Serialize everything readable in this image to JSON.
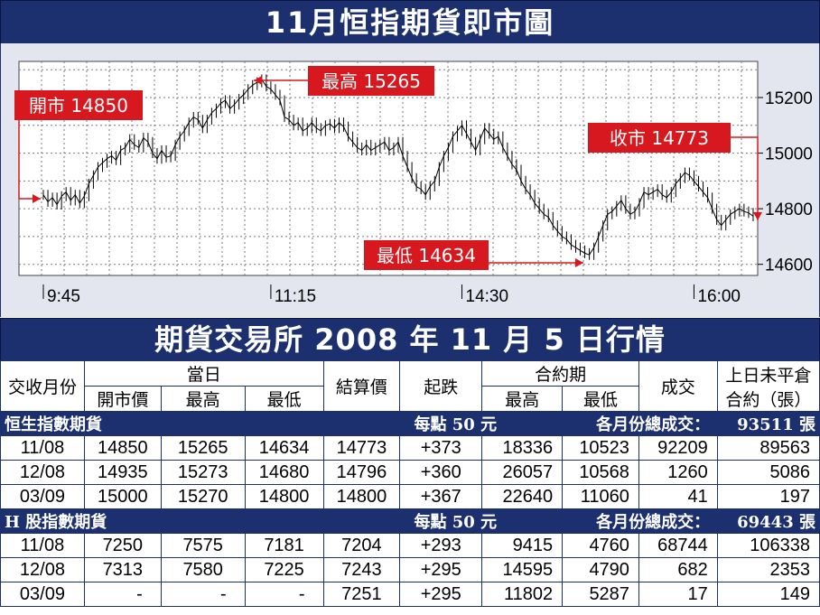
{
  "title": "11月恒指期貨即市圖",
  "chart_data": {
    "type": "candlestick-line",
    "ylim": [
      14560,
      15330
    ],
    "yticks": [
      "15200",
      "15000",
      "14800",
      "14600"
    ],
    "ytick_values": [
      15200,
      15000,
      14800,
      14600
    ],
    "xticks": [
      "9:45",
      "11:15",
      "14:30",
      "16:00"
    ],
    "xtick_positions": [
      0,
      50,
      92,
      143
    ],
    "n_points": 158,
    "points": [
      14850,
      14825,
      14840,
      14815,
      14845,
      14860,
      14830,
      14850,
      14820,
      14845,
      14890,
      14920,
      14950,
      14965,
      14980,
      14990,
      14975,
      15010,
      15020,
      15050,
      15030,
      15020,
      15055,
      15040,
      15000,
      14980,
      15010,
      14985,
      14990,
      15030,
      15060,
      15080,
      15110,
      15130,
      15120,
      15090,
      15120,
      15145,
      15160,
      15180,
      15190,
      15160,
      15175,
      15195,
      15210,
      15230,
      15245,
      15255,
      15265,
      15240,
      15230,
      15210,
      15190,
      15130,
      15120,
      15100,
      15110,
      15080,
      15090,
      15110,
      15090,
      15080,
      15100,
      15105,
      15090,
      15110,
      15095,
      15060,
      15040,
      15020,
      15010,
      15030,
      15010,
      15020,
      15030,
      15040,
      15010,
      15020,
      15040,
      14990,
      14950,
      14910,
      14880,
      14870,
      14850,
      14880,
      14900,
      14950,
      14990,
      15020,
      15060,
      15080,
      15100,
      15070,
      15040,
      15010,
      15050,
      15090,
      15070,
      15050,
      15060,
      15020,
      14990,
      14960,
      14940,
      14900,
      14870,
      14850,
      14820,
      14800,
      14780,
      14770,
      14740,
      14720,
      14700,
      14690,
      14670,
      14660,
      14650,
      14640,
      14634,
      14660,
      14700,
      14740,
      14780,
      14790,
      14810,
      14830,
      14800,
      14780,
      14790,
      14820,
      14860,
      14850,
      14860,
      14870,
      14850,
      14840,
      14860,
      14890,
      14910,
      14930,
      14920,
      14900,
      14880,
      14860,
      14840,
      14800,
      14760,
      14740,
      14760,
      14780,
      14790,
      14800,
      14790,
      14785,
      14773
    ],
    "annotations": [
      {
        "label": "開市 14850",
        "value": 14850,
        "point": 0
      },
      {
        "label": "最高 15265",
        "value": 15265,
        "point": 48
      },
      {
        "label": "收市 14773",
        "value": 14773,
        "point": 157
      },
      {
        "label": "最低 14634",
        "value": 14634,
        "point": 120
      }
    ],
    "colors": {
      "background": "#e3e6ef",
      "line": "#000000",
      "grid": "#7a7a7a",
      "callout": "#d7181f"
    }
  },
  "table": {
    "title": "期貨交易所 2008 年 11 月 5 日行情",
    "headers": {
      "month": "交收月份",
      "today": "當日",
      "open": "開市價",
      "high": "最高",
      "low": "最低",
      "settle": "結算價",
      "change": "起跌",
      "contract": "合約期",
      "c_high": "最高",
      "c_low": "最低",
      "volume": "成交",
      "oi_line1": "上日未平倉",
      "oi_line2": "合約（張）"
    },
    "sections": [
      {
        "name": "恒生指數期貨",
        "unit": "每點 50 元",
        "total_label": "各月份總成交：",
        "total": "93511 張",
        "rows": [
          [
            "11/08",
            "14850",
            "15265",
            "14634",
            "14773",
            "+373",
            "18336",
            "10523",
            "92209",
            "89563"
          ],
          [
            "12/08",
            "14935",
            "15273",
            "14680",
            "14796",
            "+360",
            "26057",
            "10568",
            "1260",
            "5086"
          ],
          [
            "03/09",
            "15000",
            "15270",
            "14800",
            "14800",
            "+367",
            "22640",
            "11060",
            "41",
            "197"
          ]
        ]
      },
      {
        "name": "H 股指數期貨",
        "unit": "每點 50 元",
        "total_label": "各月份總成交：",
        "total": "69443 張",
        "rows": [
          [
            "11/08",
            "7250",
            "7575",
            "7181",
            "7204",
            "+293",
            "9415",
            "4760",
            "68744",
            "106338"
          ],
          [
            "12/08",
            "7313",
            "7580",
            "7225",
            "7243",
            "+295",
            "14595",
            "4790",
            "682",
            "2353"
          ],
          [
            "03/09",
            "-",
            "-",
            "-",
            "7251",
            "+295",
            "11802",
            "5287",
            "17",
            "149"
          ]
        ]
      }
    ]
  }
}
